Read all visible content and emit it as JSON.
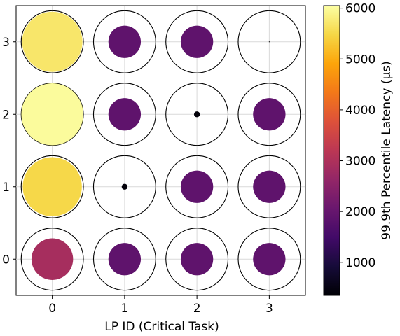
{
  "chart_data": {
    "type": "bubble-grid",
    "title": "",
    "xlabel": "LP ID (Critical Task)",
    "ylabel": "",
    "x_ticks": [
      "0",
      "1",
      "2",
      "3"
    ],
    "y_ticks": [
      "0",
      "1",
      "2",
      "3"
    ],
    "xlim": [
      -0.5,
      3.5
    ],
    "ylim": [
      -0.5,
      3.5
    ],
    "grid": true,
    "size_and_color_encode": "99.9th percentile latency (µs)",
    "points": [
      {
        "x": 0,
        "y": 3,
        "value": 5700
      },
      {
        "x": 1,
        "y": 3,
        "value": 1900
      },
      {
        "x": 2,
        "y": 3,
        "value": 1900
      },
      {
        "x": 3,
        "y": 3,
        "value": 300
      },
      {
        "x": 0,
        "y": 2,
        "value": 6000
      },
      {
        "x": 1,
        "y": 2,
        "value": 1900
      },
      {
        "x": 2,
        "y": 2,
        "value": 400
      },
      {
        "x": 3,
        "y": 2,
        "value": 1900
      },
      {
        "x": 0,
        "y": 1,
        "value": 5500
      },
      {
        "x": 1,
        "y": 1,
        "value": 400
      },
      {
        "x": 2,
        "y": 1,
        "value": 1900
      },
      {
        "x": 3,
        "y": 1,
        "value": 1900
      },
      {
        "x": 0,
        "y": 0,
        "value": 2900
      },
      {
        "x": 1,
        "y": 0,
        "value": 1900
      },
      {
        "x": 2,
        "y": 0,
        "value": 1900
      },
      {
        "x": 3,
        "y": 0,
        "value": 1900
      }
    ],
    "colorbar": {
      "label": "99.9th Percentile Latency (μs)",
      "colormap": "inferno",
      "range": [
        350,
        6050
      ],
      "ticks": [
        "1000",
        "2000",
        "3000",
        "4000",
        "5000",
        "6000"
      ]
    },
    "reference_circle_value": 6050
  }
}
